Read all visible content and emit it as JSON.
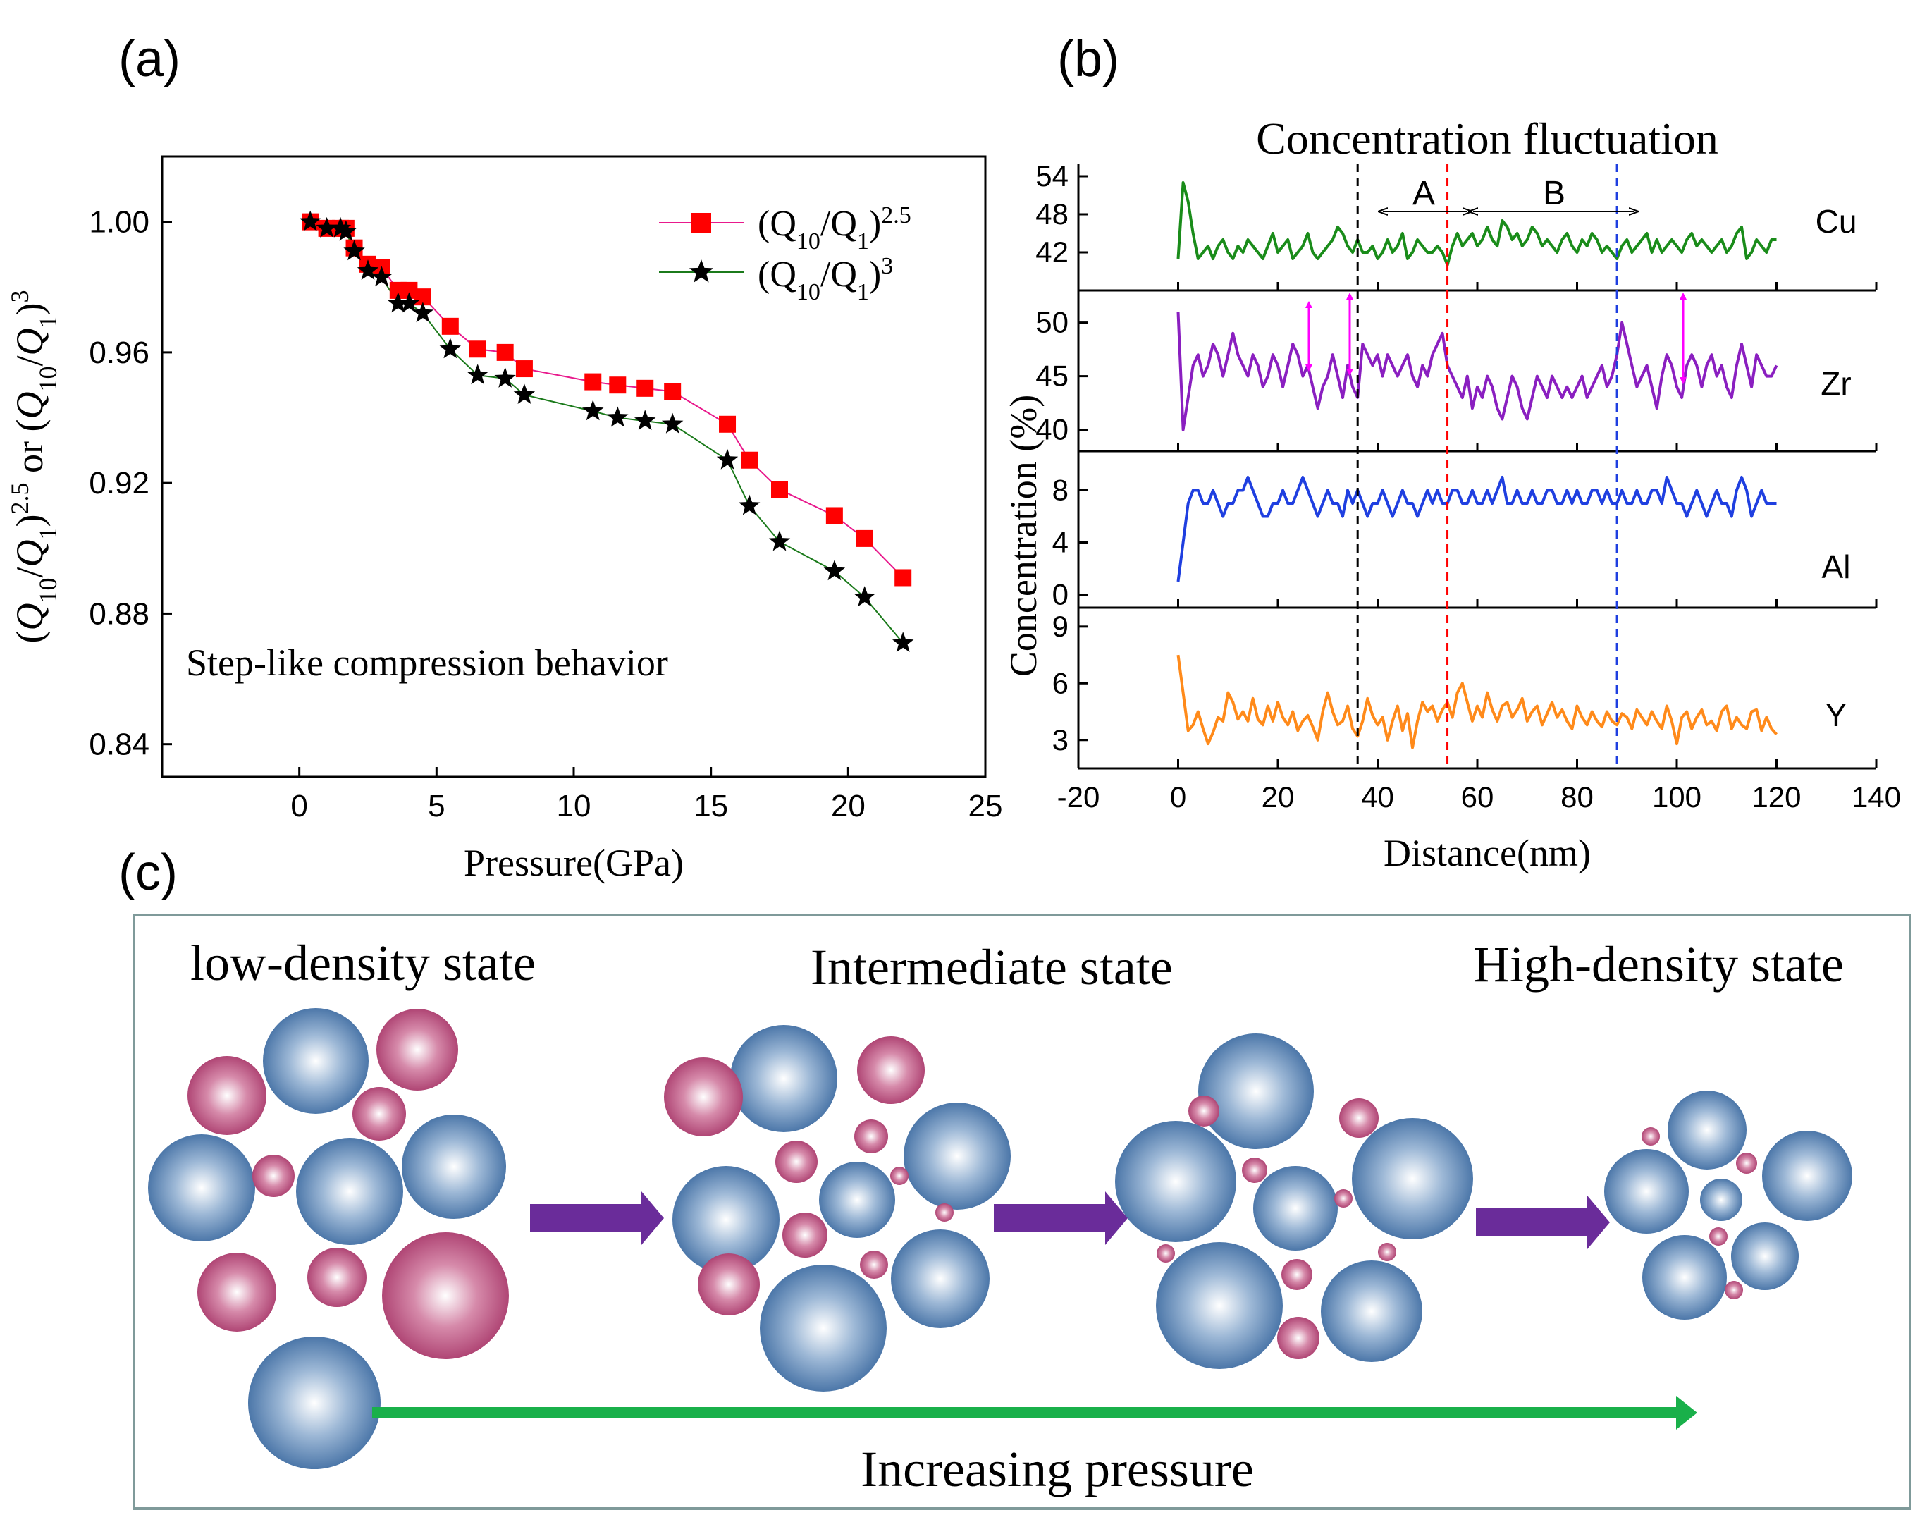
{
  "panel_labels": {
    "a": "(a)",
    "b": "(b)",
    "c": "(c)"
  },
  "colors": {
    "series_q25": "#e8198c",
    "series_q25_marker": "#ff0000",
    "series_q3": "#1b7a1b",
    "cu": "#1a8c1a",
    "zr": "#8a1fc0",
    "al": "#1f3fe0",
    "y": "#ff8a1a",
    "atom_blue": "#3f6ea3",
    "atom_pink": "#b2426f",
    "arrow_purple": "#6a2c9a",
    "arrow_green": "#19b04a",
    "arrow_magenta": "#ff00ff",
    "frame": "#7f9a9a"
  },
  "chart_data": [
    {
      "id": "a",
      "type": "scatter",
      "title": "",
      "xlabel": "Pressure(GPa)",
      "ylabel_html": {
        "p1": "(",
        "q10a": "Q",
        "s10a": "10",
        "sl": "/",
        "q1a": "Q",
        "s1a": "1",
        "cl": ")",
        "exp1": "2.5",
        "or": " or (",
        "q10b": "Q",
        "s10b": "10",
        "sl2": "/",
        "q1b": "Q",
        "s1b": "1",
        "cl2": ")",
        "exp2": "3"
      },
      "xlim": [
        -5,
        25
      ],
      "ylim": [
        0.83,
        1.02
      ],
      "xticks": [
        0,
        5,
        10,
        15,
        20,
        25
      ],
      "xtick_labels": [
        "0",
        "5",
        "10",
        "15",
        "20",
        "25"
      ],
      "yticks": [
        0.84,
        0.88,
        0.92,
        0.96,
        1.0
      ],
      "ytick_labels": [
        "0.84",
        "0.88",
        "0.92",
        "0.96",
        "1.00"
      ],
      "annotation": "Step-like  compression behavior",
      "legend_position": "top-right",
      "series": [
        {
          "name_html": {
            "q": "(Q",
            "s1": "10",
            "m": "/Q",
            "s2": "1",
            "c": ")",
            "e": "2.5"
          },
          "marker": "square",
          "x": [
            0.4,
            1.0,
            1.5,
            1.7,
            2.0,
            2.5,
            3.0,
            3.6,
            4.0,
            4.5,
            5.5,
            6.5,
            7.5,
            8.2,
            10.7,
            11.6,
            12.6,
            13.6,
            15.6,
            16.4,
            17.5,
            19.5,
            20.6,
            22.0
          ],
          "y": [
            1.0,
            0.998,
            0.998,
            0.998,
            0.992,
            0.987,
            0.986,
            0.979,
            0.979,
            0.977,
            0.968,
            0.961,
            0.96,
            0.955,
            0.951,
            0.95,
            0.949,
            0.948,
            0.938,
            0.927,
            0.918,
            0.91,
            0.903,
            0.891
          ]
        },
        {
          "name_html": {
            "q": "(Q",
            "s1": "10",
            "m": "/Q",
            "s2": "1",
            "c": ")",
            "e": "3"
          },
          "marker": "star",
          "x": [
            0.4,
            1.0,
            1.5,
            1.7,
            2.0,
            2.5,
            3.0,
            3.6,
            4.0,
            4.5,
            5.5,
            6.5,
            7.5,
            8.2,
            10.7,
            11.6,
            12.6,
            13.6,
            15.6,
            16.4,
            17.5,
            19.5,
            20.6,
            22.0
          ],
          "y": [
            1.0,
            0.998,
            0.998,
            0.997,
            0.991,
            0.985,
            0.983,
            0.975,
            0.975,
            0.972,
            0.961,
            0.953,
            0.952,
            0.947,
            0.942,
            0.94,
            0.939,
            0.938,
            0.927,
            0.913,
            0.902,
            0.893,
            0.885,
            0.871
          ]
        }
      ]
    },
    {
      "id": "b",
      "type": "line",
      "title": "Concentration fluctuation",
      "xlabel": "Distance(nm)",
      "ylabel": "Concentration (%)",
      "xlim": [
        -20,
        140
      ],
      "xticks": [
        -20,
        0,
        20,
        40,
        60,
        80,
        100,
        120,
        140
      ],
      "xtick_labels": [
        "-20",
        "0",
        "20",
        "40",
        "60",
        "80",
        "100",
        "120",
        "140"
      ],
      "region_labels": {
        "A": "A",
        "B": "B"
      },
      "vertical_markers_x": [
        36,
        54,
        88
      ],
      "panels": [
        {
          "name": "Cu",
          "ylim": [
            36,
            56
          ],
          "yticks": [
            42,
            48,
            54
          ],
          "ytick_labels": [
            "42",
            "48",
            "54"
          ],
          "x_step": 1,
          "values": [
            41,
            53,
            50,
            45,
            41,
            42,
            43,
            41,
            43,
            44,
            42,
            41,
            43,
            42,
            44,
            43,
            42,
            41,
            43,
            45,
            42,
            43,
            44,
            41,
            42,
            43,
            45,
            42,
            41,
            42,
            43,
            44,
            46,
            45,
            43,
            42,
            44,
            42,
            42,
            43,
            41,
            42,
            44,
            42,
            43,
            45,
            41,
            42,
            44,
            43,
            42,
            42,
            43,
            42,
            40,
            43,
            45,
            43,
            44,
            45,
            43,
            44,
            46,
            44,
            43,
            47,
            46,
            44,
            45,
            43,
            44,
            46,
            45,
            43,
            44,
            43,
            42,
            44,
            45,
            43,
            42,
            44,
            43,
            45,
            44,
            42,
            43,
            42,
            41,
            43,
            44,
            42,
            43,
            44,
            45,
            42,
            44,
            42,
            43,
            44,
            43,
            42,
            44,
            45,
            43,
            44,
            43,
            42,
            43,
            44,
            42,
            43,
            45,
            46,
            41,
            42,
            44,
            43,
            42,
            44,
            44
          ]
        },
        {
          "name": "Zr",
          "ylim": [
            38,
            53
          ],
          "yticks": [
            40,
            45,
            50
          ],
          "ytick_labels": [
            "40",
            "45",
            "50"
          ],
          "x_step": 1,
          "values": [
            51,
            40,
            43,
            46,
            47,
            45,
            46,
            48,
            47,
            45,
            47,
            49,
            47,
            46,
            45,
            47,
            46,
            44,
            45,
            47,
            46,
            44,
            46,
            48,
            47,
            45,
            46,
            44,
            42,
            44,
            45,
            47,
            45,
            43,
            46,
            44,
            43,
            48,
            47,
            46,
            47,
            45,
            47,
            46,
            45,
            46,
            47,
            45,
            44,
            46,
            45,
            47,
            48,
            49,
            46,
            45,
            44,
            43,
            45,
            42,
            44,
            43,
            45,
            44,
            42,
            41,
            43,
            45,
            44,
            42,
            41,
            43,
            45,
            44,
            43,
            45,
            44,
            43,
            44,
            43,
            44,
            45,
            43,
            44,
            45,
            46,
            44,
            45,
            47,
            50,
            48,
            46,
            44,
            45,
            46,
            44,
            42,
            45,
            47,
            46,
            44,
            43,
            46,
            47,
            46,
            44,
            46,
            47,
            45,
            46,
            44,
            43,
            46,
            48,
            46,
            44,
            47,
            46,
            45,
            45,
            46
          ]
        },
        {
          "name": "Al",
          "ylim": [
            -1,
            11
          ],
          "yticks": [
            0,
            4,
            8
          ],
          "ytick_labels": [
            "0",
            "4",
            "8"
          ],
          "x_step": 1,
          "values": [
            1,
            4,
            7,
            8,
            8,
            7,
            7,
            8,
            7,
            6,
            7,
            7,
            8,
            8,
            9,
            8,
            7,
            6,
            6,
            7,
            7,
            8,
            7,
            7,
            8,
            9,
            8,
            7,
            6,
            7,
            8,
            7,
            7,
            6,
            8,
            7,
            8,
            7,
            6,
            7,
            7,
            8,
            7,
            6,
            7,
            8,
            7,
            7,
            6,
            7,
            8,
            7,
            8,
            7,
            7,
            8,
            8,
            7,
            7,
            8,
            7,
            7,
            8,
            7,
            8,
            9,
            7,
            7,
            8,
            7,
            7,
            8,
            7,
            7,
            8,
            8,
            7,
            7,
            8,
            7,
            8,
            7,
            7,
            8,
            8,
            7,
            8,
            7,
            7,
            8,
            7,
            7,
            8,
            7,
            7,
            8,
            8,
            7,
            9,
            8,
            7,
            7,
            6,
            7,
            8,
            7,
            6,
            7,
            8,
            7,
            7,
            6,
            8,
            9,
            8,
            6,
            7,
            8,
            7,
            7,
            7
          ]
        },
        {
          "name": "Y",
          "ylim": [
            1.5,
            10
          ],
          "yticks": [
            3,
            6,
            9
          ],
          "ytick_labels": [
            "3",
            "6",
            "9"
          ],
          "x_step": 1,
          "values": [
            7.5,
            5.5,
            3.5,
            3.8,
            4.5,
            3.6,
            2.8,
            3.4,
            4.2,
            4.0,
            5.5,
            5.0,
            4.1,
            4.5,
            4.0,
            5.2,
            4.1,
            3.8,
            4.8,
            4.0,
            5.0,
            4.2,
            3.8,
            4.5,
            3.5,
            4.0,
            4.3,
            3.7,
            3.0,
            4.5,
            5.5,
            4.5,
            3.8,
            4.0,
            4.8,
            3.6,
            3.2,
            4.0,
            5.2,
            4.3,
            3.8,
            4.2,
            3.0,
            4.0,
            4.8,
            3.5,
            4.4,
            2.6,
            4.0,
            5.0,
            4.5,
            4.8,
            4.0,
            4.6,
            5.0,
            4.2,
            5.5,
            6.0,
            5.0,
            4.0,
            4.8,
            4.2,
            5.5,
            4.6,
            4.0,
            4.8,
            5.0,
            4.2,
            4.6,
            5.2,
            4.0,
            4.5,
            4.8,
            3.8,
            4.4,
            5.0,
            4.2,
            4.6,
            4.0,
            3.6,
            4.8,
            4.2,
            3.8,
            4.5,
            4.0,
            3.7,
            4.5,
            4.0,
            3.8,
            4.4,
            4.2,
            3.6,
            4.6,
            4.2,
            3.8,
            4.5,
            4.0,
            3.6,
            4.8,
            4.0,
            2.8,
            4.2,
            4.5,
            3.6,
            4.2,
            4.6,
            3.8,
            4.0,
            3.5,
            4.5,
            4.8,
            3.6,
            4.2,
            3.8,
            3.6,
            4.5,
            4.6,
            3.5,
            4.2,
            3.6,
            3.3
          ]
        }
      ]
    }
  ],
  "panel_c": {
    "labels": {
      "low": "low-density state",
      "intermediate": "Intermediate state",
      "high": "High-density state",
      "pressure": "Increasing pressure"
    }
  }
}
